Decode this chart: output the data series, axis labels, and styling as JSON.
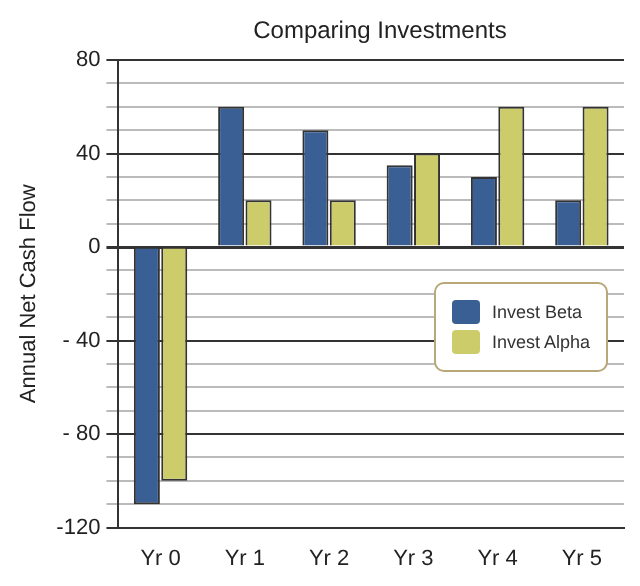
{
  "chart_data": {
    "type": "bar",
    "title": "Comparing Investments",
    "ylabel": "Annual Net Cash Flow",
    "categories": [
      "Yr 0",
      "Yr 1",
      "Yr 2",
      "Yr 3",
      "Yr 4",
      "Yr 5"
    ],
    "series": [
      {
        "name": "Invest Beta",
        "color": "#3a5f95",
        "values": [
          -110,
          60,
          50,
          35,
          30,
          20
        ]
      },
      {
        "name": "Invest Alpha",
        "color": "#cdcc6a",
        "values": [
          -100,
          20,
          20,
          40,
          60,
          60
        ]
      }
    ],
    "ylim": [
      -120,
      80
    ],
    "yticks": [
      {
        "value": -120,
        "label": "-120"
      },
      {
        "value": -110,
        "label": null
      },
      {
        "value": -100,
        "label": null
      },
      {
        "value": -90,
        "label": null
      },
      {
        "value": -80,
        "label": "- 80"
      },
      {
        "value": -70,
        "label": null
      },
      {
        "value": -60,
        "label": null
      },
      {
        "value": -50,
        "label": null
      },
      {
        "value": -40,
        "label": "- 40"
      },
      {
        "value": -30,
        "label": null
      },
      {
        "value": -20,
        "label": null
      },
      {
        "value": -10,
        "label": null
      },
      0,
      {
        "value": 10,
        "label": null
      },
      {
        "value": 20,
        "label": null
      },
      {
        "value": 30,
        "label": null
      },
      40,
      {
        "value": 50,
        "label": null
      },
      {
        "value": 60,
        "label": null
      },
      {
        "value": 70,
        "label": null
      },
      80
    ],
    "grid": "y",
    "legend": "right"
  }
}
